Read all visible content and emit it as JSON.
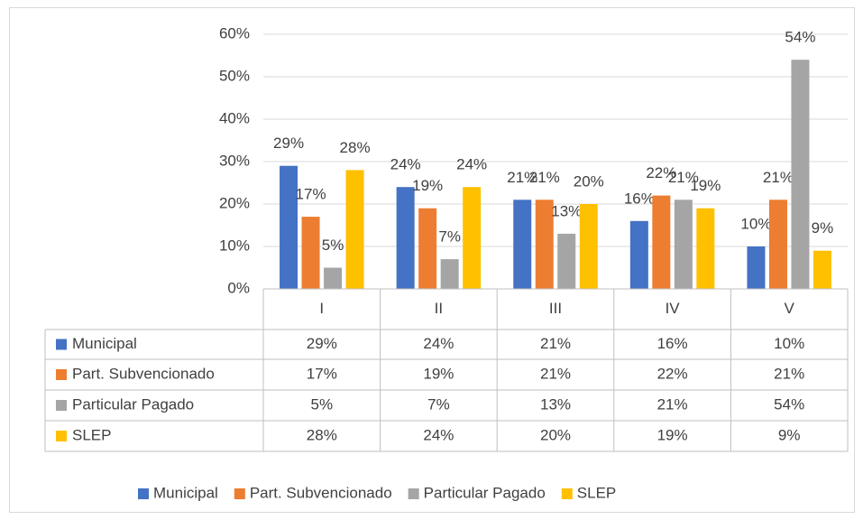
{
  "chart_data": {
    "type": "bar",
    "categories": [
      "I",
      "II",
      "III",
      "IV",
      "V"
    ],
    "series": [
      {
        "name": "Municipal",
        "color": "#4472c4",
        "values": [
          29,
          24,
          21,
          16,
          10
        ],
        "value_labels": [
          "29%",
          "24%",
          "21%",
          "16%",
          "10%"
        ]
      },
      {
        "name": "Part. Subvencionado",
        "color": "#ed7d31",
        "values": [
          17,
          19,
          21,
          22,
          21
        ],
        "value_labels": [
          "17%",
          "19%",
          "21%",
          "22%",
          "21%"
        ]
      },
      {
        "name": "Particular Pagado",
        "color": "#a5a5a5",
        "values": [
          5,
          7,
          13,
          21,
          54
        ],
        "value_labels": [
          "5%",
          "7%",
          "13%",
          "21%",
          "54%"
        ]
      },
      {
        "name": "SLEP",
        "color": "#ffc000",
        "values": [
          28,
          24,
          20,
          19,
          9
        ],
        "value_labels": [
          "28%",
          "24%",
          "20%",
          "19%",
          "9%"
        ]
      }
    ],
    "ylim": [
      0,
      60
    ],
    "yticks": [
      {
        "value": 0,
        "label": "0%"
      },
      {
        "value": 10,
        "label": "10%"
      },
      {
        "value": 20,
        "label": "20%"
      },
      {
        "value": 30,
        "label": "30%"
      },
      {
        "value": 40,
        "label": "40%"
      },
      {
        "value": 50,
        "label": "50%"
      },
      {
        "value": 60,
        "label": "60%"
      }
    ],
    "grid": true,
    "data_table": true,
    "legend": "bottom"
  }
}
